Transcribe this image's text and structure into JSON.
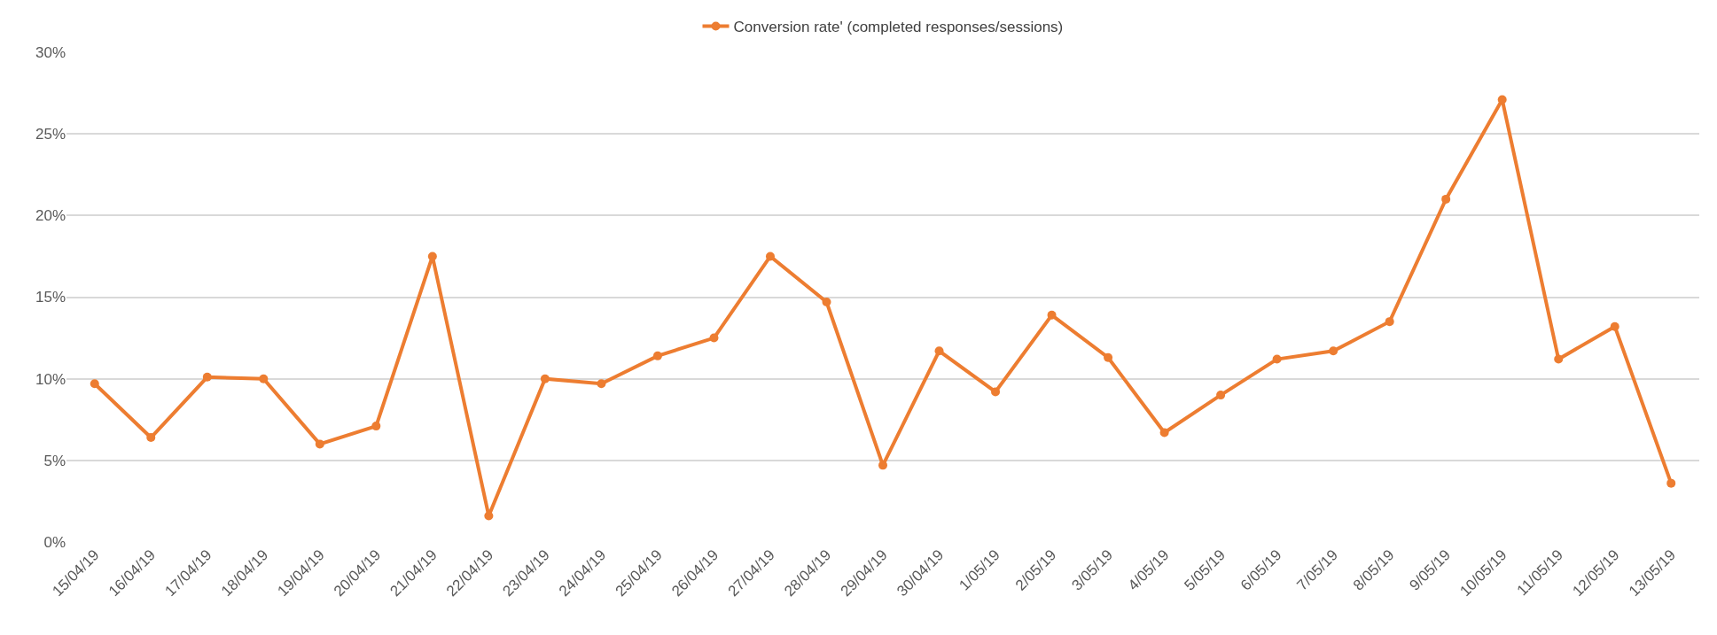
{
  "chart_data": {
    "type": "line",
    "categories": [
      "15/04/19",
      "16/04/19",
      "17/04/19",
      "18/04/19",
      "19/04/19",
      "20/04/19",
      "21/04/19",
      "22/04/19",
      "23/04/19",
      "24/04/19",
      "25/04/19",
      "26/04/19",
      "27/04/19",
      "28/04/19",
      "29/04/19",
      "30/04/19",
      "1/05/19",
      "2/05/19",
      "3/05/19",
      "4/05/19",
      "5/05/19",
      "6/05/19",
      "7/05/19",
      "8/05/19",
      "9/05/19",
      "10/05/19",
      "11/05/19",
      "12/05/19",
      "13/05/19"
    ],
    "series": [
      {
        "name": "Conversion rate' (completed responses/sessions)",
        "color": "#ed7d31",
        "values": [
          9.7,
          6.4,
          10.1,
          10.0,
          6.0,
          7.1,
          17.5,
          1.6,
          10.0,
          9.7,
          11.4,
          12.5,
          17.5,
          14.7,
          4.7,
          11.7,
          9.2,
          13.9,
          11.3,
          6.7,
          9.0,
          11.2,
          11.7,
          13.5,
          21.0,
          27.1,
          11.2,
          13.2,
          3.6
        ]
      }
    ],
    "ylim": [
      0,
      30
    ],
    "yticks": [
      {
        "value": 0,
        "label": "0%"
      },
      {
        "value": 5,
        "label": "5%"
      },
      {
        "value": 10,
        "label": "10%"
      },
      {
        "value": 15,
        "label": "15%"
      },
      {
        "value": 20,
        "label": "20%"
      },
      {
        "value": 25,
        "label": "25%"
      },
      {
        "value": 30,
        "label": "30%"
      }
    ],
    "grid": "y",
    "legend": "top",
    "marker": "circle",
    "line_style": "solid"
  }
}
